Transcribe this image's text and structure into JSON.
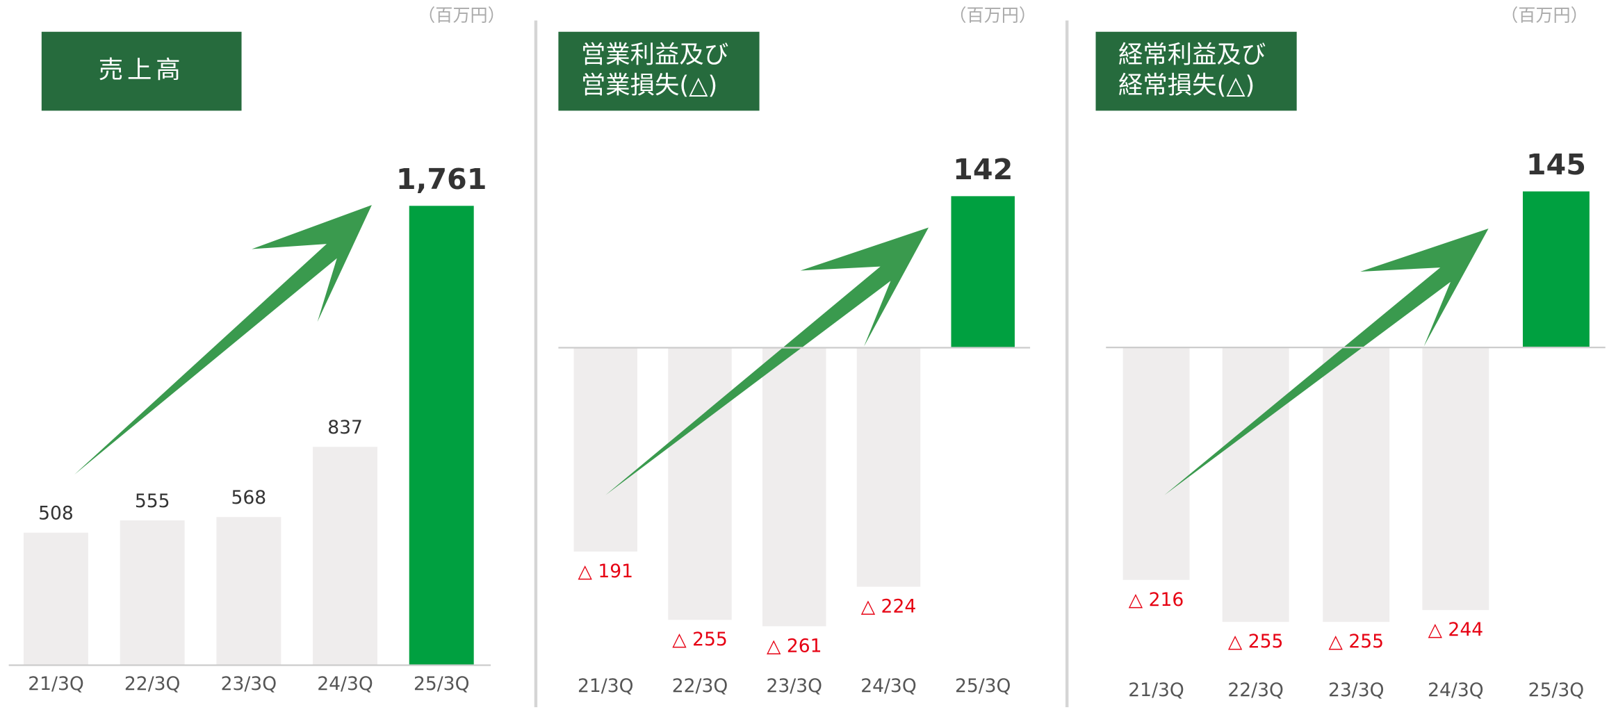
{
  "chart_data": [
    {
      "type": "bar",
      "title": [
        "売上高"
      ],
      "unit": "（百万円）",
      "categories": [
        "21/3Q",
        "22/3Q",
        "23/3Q",
        "24/3Q",
        "25/3Q"
      ],
      "values": [
        508,
        555,
        568,
        837,
        1761
      ],
      "value_labels": [
        "508",
        "555",
        "568",
        "837",
        "1,761"
      ],
      "color": "#efeded",
      "highlight_color": "#00a040",
      "label_color": "#333333",
      "negative_label_color": "#e60012",
      "ylim": [
        0,
        2000
      ]
    },
    {
      "type": "bar",
      "title": [
        "営業利益及び",
        "営業損失(△)"
      ],
      "unit": "（百万円）",
      "categories": [
        "21/3Q",
        "22/3Q",
        "23/3Q",
        "24/3Q",
        "25/3Q"
      ],
      "values": [
        -191,
        -255,
        -261,
        -224,
        142
      ],
      "value_labels": [
        "△ 191",
        "△ 255",
        "△ 261",
        "△ 224",
        "142"
      ],
      "color": "#efeded",
      "highlight_color": "#00a040",
      "label_color": "#333333",
      "negative_label_color": "#e60012",
      "ylim": [
        -300,
        200
      ]
    },
    {
      "type": "bar",
      "title": [
        "経常利益及び",
        "経常損失(△)"
      ],
      "unit": "（百万円）",
      "categories": [
        "21/3Q",
        "22/3Q",
        "23/3Q",
        "24/3Q",
        "25/3Q"
      ],
      "values": [
        -216,
        -255,
        -255,
        -244,
        145
      ],
      "value_labels": [
        "△ 216",
        "△ 255",
        "△ 255",
        "△ 244",
        "145"
      ],
      "color": "#efeded",
      "highlight_color": "#00a040",
      "label_color": "#333333",
      "negative_label_color": "#e60012",
      "ylim": [
        -300,
        200
      ]
    }
  ]
}
